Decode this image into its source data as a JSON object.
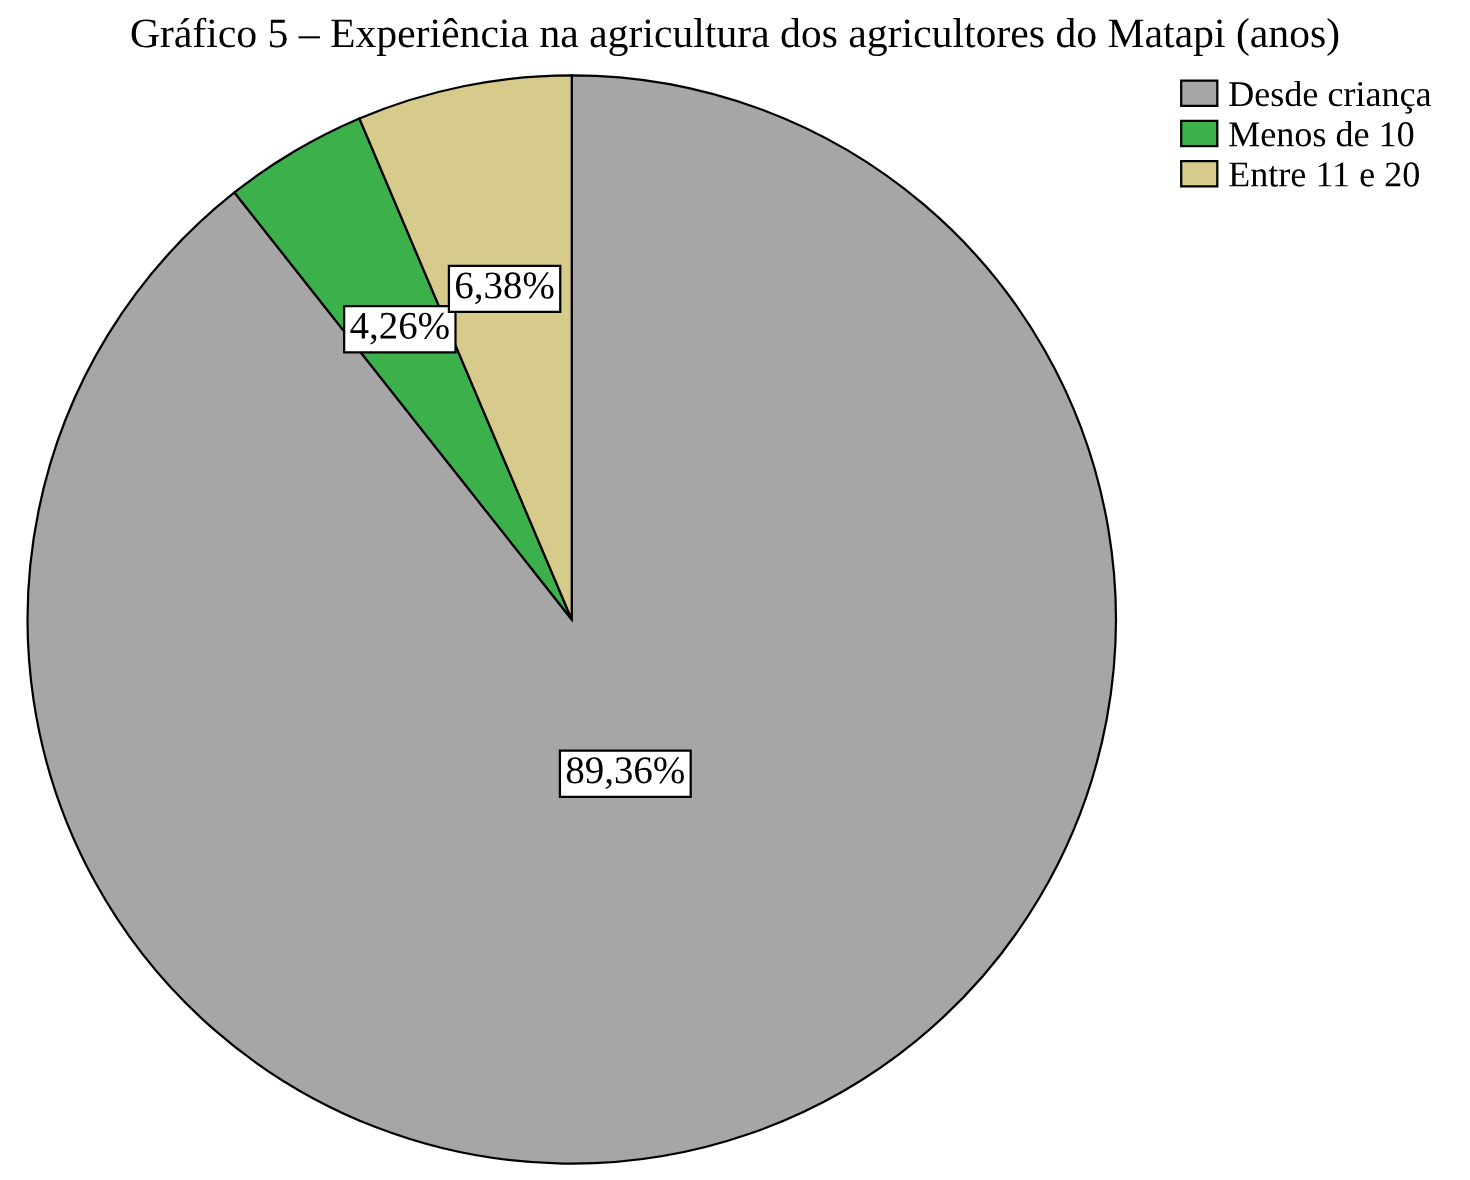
{
  "chart_data": {
    "type": "pie",
    "title": "Gráfico 5 – Experiência na agricultura dos agricultores do Matapi (anos)",
    "categories": [
      "Desde criança",
      "Menos de 10",
      "Entre 11 e 20"
    ],
    "values": [
      89.36,
      4.26,
      6.38
    ],
    "colors": [
      "#a6a6a6",
      "#3cb04a",
      "#d6cb8a"
    ],
    "value_labels": [
      "89,36%",
      "4,26%",
      "6,38%"
    ],
    "legend": "top right"
  }
}
